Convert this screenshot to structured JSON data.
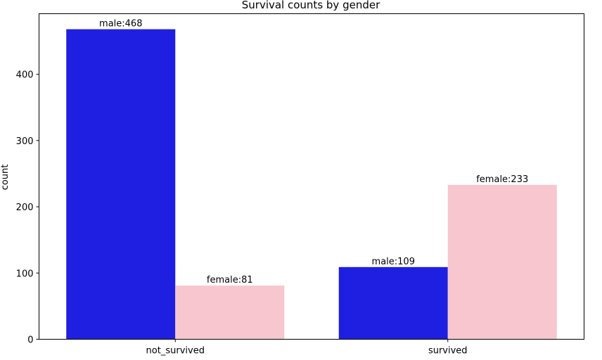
{
  "chart_data": {
    "type": "bar",
    "title": "Survival counts by gender",
    "xlabel": "",
    "ylabel": "count",
    "categories": [
      "not_survived",
      "survived"
    ],
    "ylim": [
      0,
      491.4
    ],
    "yticks": [
      0,
      100,
      200,
      300,
      400
    ],
    "grid": false,
    "series": [
      {
        "name": "male",
        "color": "#1f1fe1",
        "values": [
          468,
          109
        ],
        "labels": [
          "male:468",
          "male:109"
        ]
      },
      {
        "name": "female",
        "color": "#f7c6ce",
        "values": [
          81,
          233
        ],
        "labels": [
          "female:81",
          "female:233"
        ]
      }
    ]
  }
}
